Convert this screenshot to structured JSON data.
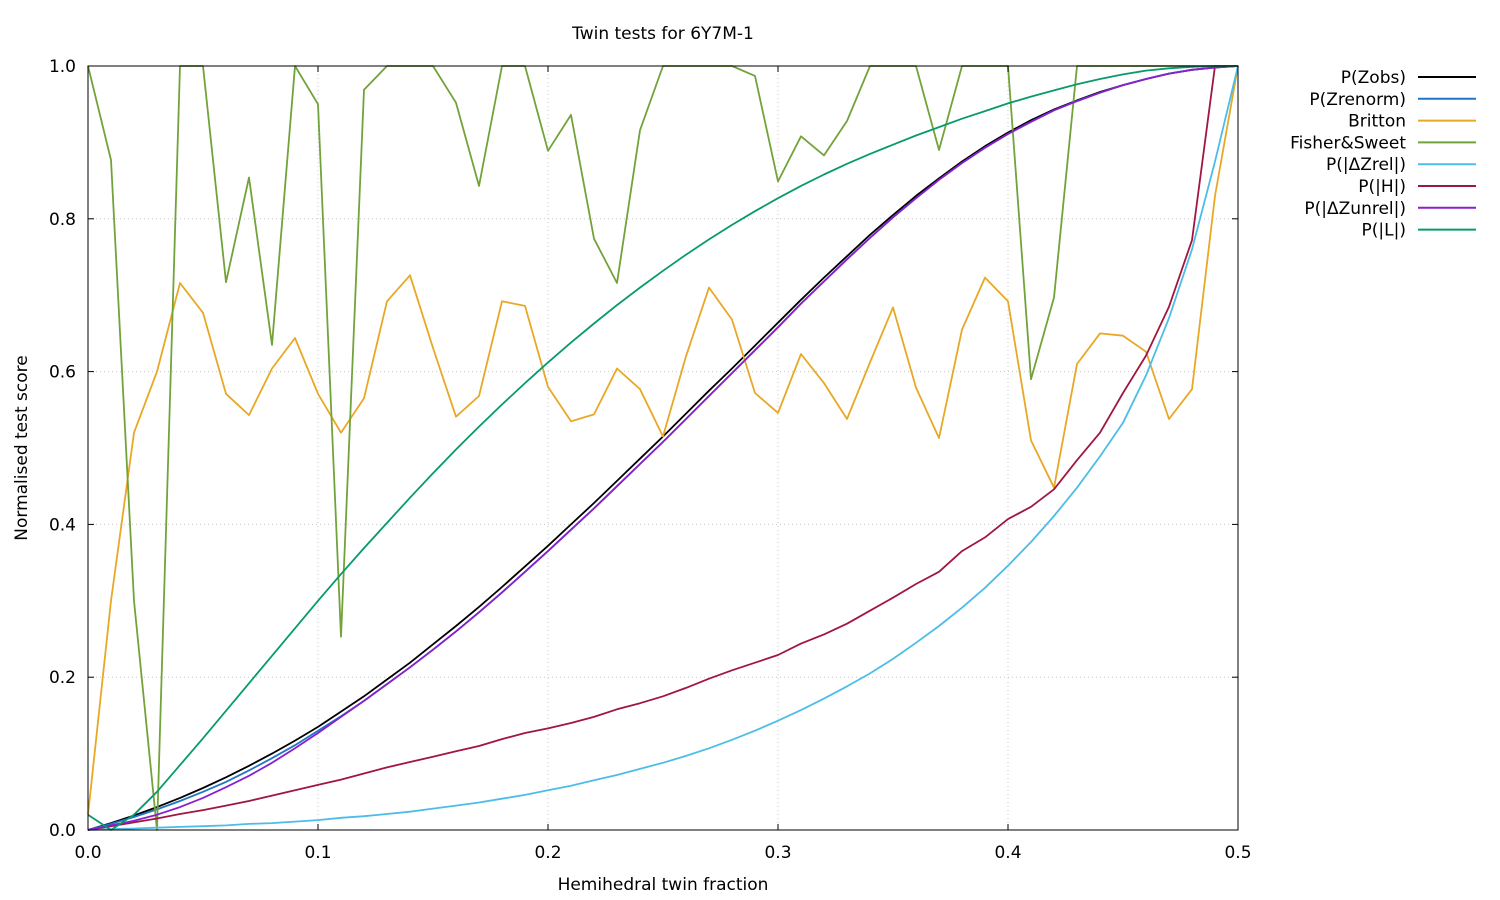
{
  "chart_data": {
    "type": "line",
    "title": "Twin tests for 6Y7M-1",
    "xlabel": "Hemihedral twin fraction",
    "ylabel": "Normalised test score",
    "xlim": [
      0.0,
      0.5
    ],
    "ylim": [
      0.0,
      1.0
    ],
    "xticks": [
      "0.0",
      "0.1",
      "0.2",
      "0.3",
      "0.4",
      "0.5"
    ],
    "yticks": [
      "0.0",
      "0.2",
      "0.4",
      "0.6",
      "0.8",
      "1.0"
    ],
    "grid": true,
    "legend_position": "outside-right",
    "x": [
      0.0,
      0.01,
      0.02,
      0.03,
      0.04,
      0.05,
      0.06,
      0.07,
      0.08,
      0.09,
      0.1,
      0.11,
      0.12,
      0.13,
      0.14,
      0.15,
      0.16,
      0.17,
      0.18,
      0.19,
      0.2,
      0.21,
      0.22,
      0.23,
      0.24,
      0.25,
      0.26,
      0.27,
      0.28,
      0.29,
      0.3,
      0.31,
      0.32,
      0.33,
      0.34,
      0.35,
      0.36,
      0.37,
      0.38,
      0.39,
      0.4,
      0.41,
      0.42,
      0.43,
      0.44,
      0.45,
      0.46,
      0.47,
      0.48,
      0.49,
      0.5
    ],
    "series": [
      {
        "name": "P(Zobs)",
        "color": "#000000",
        "values": [
          0.0,
          0.009,
          0.019,
          0.03,
          0.042,
          0.055,
          0.069,
          0.084,
          0.1,
          0.117,
          0.135,
          0.155,
          0.175,
          0.197,
          0.219,
          0.243,
          0.267,
          0.292,
          0.318,
          0.345,
          0.372,
          0.4,
          0.428,
          0.457,
          0.486,
          0.515,
          0.545,
          0.575,
          0.604,
          0.634,
          0.664,
          0.694,
          0.723,
          0.751,
          0.779,
          0.805,
          0.83,
          0.853,
          0.875,
          0.895,
          0.913,
          0.929,
          0.943,
          0.955,
          0.966,
          0.975,
          0.983,
          0.99,
          0.995,
          0.998,
          1.0
        ]
      },
      {
        "name": "P(Zrenorm)",
        "color": "#1f77c4",
        "values": [
          0.0,
          0.008,
          0.017,
          0.027,
          0.038,
          0.05,
          0.063,
          0.078,
          0.094,
          0.111,
          0.13,
          0.149,
          0.169,
          0.191,
          0.213,
          0.236,
          0.26,
          0.285,
          0.311,
          0.338,
          0.365,
          0.393,
          0.421,
          0.45,
          0.479,
          0.508,
          0.538,
          0.568,
          0.598,
          0.628,
          0.658,
          0.689,
          0.718,
          0.747,
          0.775,
          0.802,
          0.827,
          0.851,
          0.873,
          0.893,
          0.911,
          0.927,
          0.942,
          0.954,
          0.965,
          0.975,
          0.983,
          0.99,
          0.995,
          0.998,
          1.0
        ]
      },
      {
        "name": "Britton",
        "color": "#e8a825",
        "values": [
          0.02,
          0.3,
          0.52,
          0.6,
          0.716,
          0.677,
          0.571,
          0.543,
          0.604,
          0.644,
          0.571,
          0.52,
          0.565,
          0.692,
          0.726,
          0.631,
          0.541,
          0.568,
          0.692,
          0.686,
          0.58,
          0.535,
          0.544,
          0.604,
          0.577,
          0.515,
          0.62,
          0.71,
          0.668,
          0.572,
          0.546,
          0.623,
          0.585,
          0.538,
          0.612,
          0.684,
          0.579,
          0.513,
          0.655,
          0.723,
          0.692,
          0.51,
          0.448,
          0.61,
          0.65,
          0.647,
          0.626,
          0.538,
          0.577,
          0.83,
          1.0
        ]
      },
      {
        "name": "Fisher&Sweet",
        "color": "#72a33a",
        "values": [
          1.0,
          0.877,
          0.3,
          0.0,
          1.0,
          1.0,
          0.717,
          0.854,
          0.635,
          1.0,
          0.95,
          0.253,
          0.969,
          1.0,
          1.0,
          1.0,
          0.952,
          0.843,
          1.0,
          1.0,
          0.889,
          0.936,
          0.774,
          0.716,
          0.916,
          1.0,
          1.0,
          1.0,
          1.0,
          0.987,
          0.849,
          0.908,
          0.883,
          0.928,
          1.0,
          1.0,
          1.0,
          0.89,
          1.0,
          1.0,
          1.0,
          0.59,
          0.697,
          1.0,
          1.0,
          1.0,
          1.0,
          1.0,
          1.0,
          1.0,
          1.0
        ]
      },
      {
        "name": "P(|ΔZrel|)",
        "color": "#4cbde8",
        "values": [
          0.0,
          0.001,
          0.002,
          0.003,
          0.004,
          0.005,
          0.006,
          0.008,
          0.009,
          0.011,
          0.013,
          0.016,
          0.018,
          0.021,
          0.024,
          0.028,
          0.032,
          0.036,
          0.041,
          0.046,
          0.052,
          0.058,
          0.065,
          0.072,
          0.08,
          0.088,
          0.097,
          0.107,
          0.118,
          0.13,
          0.143,
          0.157,
          0.172,
          0.188,
          0.205,
          0.224,
          0.245,
          0.267,
          0.291,
          0.317,
          0.346,
          0.377,
          0.411,
          0.448,
          0.489,
          0.533,
          0.595,
          0.67,
          0.76,
          0.875,
          1.0
        ]
      },
      {
        "name": "P(|H|)",
        "color": "#a0163f",
        "values": [
          0.0,
          0.005,
          0.01,
          0.015,
          0.021,
          0.026,
          0.032,
          0.038,
          0.045,
          0.052,
          0.059,
          0.066,
          0.074,
          0.082,
          0.089,
          0.096,
          0.103,
          0.11,
          0.119,
          0.127,
          0.133,
          0.14,
          0.148,
          0.158,
          0.166,
          0.175,
          0.186,
          0.198,
          0.209,
          0.219,
          0.229,
          0.244,
          0.256,
          0.27,
          0.287,
          0.304,
          0.322,
          0.338,
          0.365,
          0.383,
          0.407,
          0.423,
          0.446,
          0.484,
          0.52,
          0.572,
          0.621,
          0.685,
          0.772,
          1.0,
          1.0
        ]
      },
      {
        "name": "P(|ΔZunrel|)",
        "color": "#8a1fd0",
        "values": [
          0.0,
          0.006,
          0.012,
          0.02,
          0.03,
          0.042,
          0.056,
          0.071,
          0.088,
          0.107,
          0.127,
          0.148,
          0.169,
          0.191,
          0.213,
          0.236,
          0.26,
          0.285,
          0.311,
          0.338,
          0.365,
          0.393,
          0.421,
          0.45,
          0.479,
          0.508,
          0.538,
          0.568,
          0.598,
          0.628,
          0.658,
          0.689,
          0.718,
          0.747,
          0.775,
          0.802,
          0.827,
          0.851,
          0.873,
          0.893,
          0.911,
          0.927,
          0.942,
          0.954,
          0.965,
          0.975,
          0.983,
          0.99,
          0.995,
          0.998,
          1.0
        ]
      },
      {
        "name": "P(|L|)",
        "color": "#079a6e",
        "values": [
          0.02,
          0.0,
          0.02,
          0.05,
          0.085,
          0.12,
          0.156,
          0.192,
          0.228,
          0.264,
          0.3,
          0.335,
          0.369,
          0.402,
          0.435,
          0.467,
          0.498,
          0.528,
          0.557,
          0.585,
          0.612,
          0.638,
          0.663,
          0.687,
          0.71,
          0.732,
          0.753,
          0.773,
          0.792,
          0.81,
          0.827,
          0.843,
          0.858,
          0.872,
          0.885,
          0.897,
          0.909,
          0.92,
          0.931,
          0.941,
          0.951,
          0.96,
          0.968,
          0.976,
          0.983,
          0.989,
          0.994,
          0.997,
          0.999,
          1.0,
          1.0
        ]
      }
    ]
  }
}
